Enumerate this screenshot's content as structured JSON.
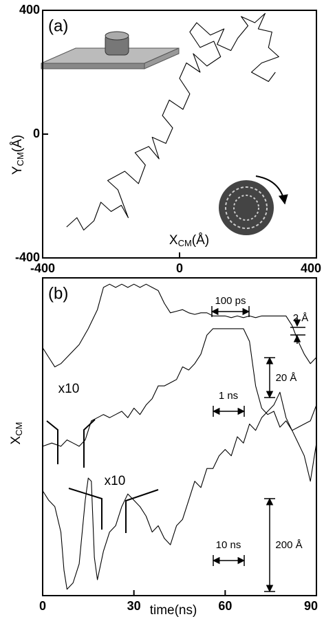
{
  "chart_data": [
    {
      "type": "line",
      "panel_label": "(a)",
      "x_label": {
        "text": "X",
        "sub": "CM",
        "unit": "(Å)"
      },
      "y_label": {
        "text": "Y",
        "sub": "CM",
        "unit": "(Å)"
      },
      "xlim": [
        -400,
        400
      ],
      "ylim": [
        -400,
        400
      ],
      "xticks": [
        -400,
        0,
        400
      ],
      "yticks": [
        -400,
        0,
        400
      ],
      "series": [
        {
          "color": "#000000",
          "x": [
            -330,
            -300,
            -280,
            -250,
            -230,
            -200,
            -170,
            -150,
            -180,
            -210,
            -160,
            -120,
            -100,
            -130,
            -90,
            -60,
            -80,
            -40,
            -20,
            -50,
            -30,
            10,
            30,
            0,
            20,
            60,
            40,
            80,
            120,
            100,
            60,
            30,
            50,
            90,
            130,
            110,
            150,
            170,
            200,
            180,
            220,
            250,
            230,
            270,
            260,
            290,
            240,
            210,
            260,
            280
          ],
          "values": [
            -300,
            -270,
            -310,
            -280,
            -220,
            -250,
            -230,
            -270,
            -180,
            -150,
            -120,
            -160,
            -100,
            -60,
            -40,
            -80,
            -10,
            -30,
            20,
            60,
            110,
            80,
            130,
            180,
            230,
            200,
            260,
            220,
            250,
            300,
            280,
            330,
            360,
            320,
            340,
            290,
            270,
            310,
            350,
            380,
            360,
            390,
            340,
            330,
            280,
            250,
            230,
            200,
            170,
            200
          ]
        }
      ]
    },
    {
      "type": "line",
      "panel_label": "(b)",
      "x_label": "time(ns)",
      "y_label": {
        "text": "X",
        "sub": "CM"
      },
      "xlim": [
        0,
        90
      ],
      "ylim": [
        0,
        100
      ],
      "xticks": [
        0,
        30,
        60,
        90
      ],
      "annotations": [
        "100 ps",
        "2 Å",
        "20 Å",
        "1 ns",
        "x10",
        "x10",
        "10 ns",
        "200 Å"
      ],
      "series": [
        {
          "color": "#000000",
          "x": [
            0,
            2,
            4,
            6,
            9,
            12,
            15,
            18,
            20,
            22,
            24,
            26,
            28,
            30,
            32,
            34,
            36,
            38,
            40,
            42,
            44,
            46,
            48,
            50,
            52,
            54,
            56,
            58,
            60,
            62,
            64,
            66,
            68,
            70,
            72,
            74,
            76,
            78,
            80,
            82,
            84,
            86,
            88,
            90
          ],
          "values": [
            78,
            75,
            72,
            73,
            76,
            79,
            84,
            90,
            97,
            98,
            97,
            98,
            97,
            98,
            97,
            98,
            97,
            96,
            92,
            89,
            89.5,
            90,
            89,
            88.5,
            89,
            89,
            88,
            88,
            88,
            87.5,
            88,
            87.5,
            88,
            87.5,
            88,
            88,
            88,
            88,
            88,
            85,
            80,
            76,
            73,
            75
          ]
        },
        {
          "color": "#000000",
          "x": [
            0,
            3,
            6,
            8,
            10,
            12,
            14,
            16,
            18,
            20,
            22,
            24,
            26,
            28,
            30,
            32,
            34,
            36,
            38,
            40,
            42,
            44,
            46,
            48,
            50,
            52,
            54,
            56,
            58,
            60,
            62,
            64,
            66,
            68,
            70,
            72,
            74,
            76,
            78,
            80,
            82,
            84,
            86,
            88,
            90
          ],
          "values": [
            47,
            48,
            47,
            49,
            48,
            47,
            49,
            55,
            56,
            57,
            56,
            57,
            58,
            56,
            59,
            57,
            60,
            62,
            66,
            66,
            67,
            68,
            72,
            71,
            73,
            76,
            82,
            84,
            84,
            84,
            84,
            84,
            84,
            80,
            66,
            59,
            57,
            58,
            53,
            55,
            52,
            53,
            54,
            55,
            60
          ]
        },
        {
          "color": "#000000",
          "x": [
            0,
            2,
            4,
            6,
            7,
            8,
            10,
            12,
            14,
            15,
            16,
            17,
            18,
            20,
            22,
            24,
            26,
            28,
            30,
            32,
            34,
            36,
            38,
            40,
            42,
            44,
            46,
            48,
            50,
            52,
            54,
            56,
            58,
            60,
            62,
            64,
            66,
            68,
            70,
            72,
            74,
            76,
            78,
            80,
            82,
            84,
            86,
            88,
            90
          ],
          "values": [
            33,
            30,
            28,
            20,
            8,
            2,
            4,
            10,
            30,
            37,
            36,
            12,
            5,
            14,
            20,
            22,
            28,
            32,
            30,
            28,
            25,
            20,
            22,
            18,
            16,
            22,
            24,
            30,
            36,
            34,
            40,
            40,
            44,
            46,
            44,
            50,
            48,
            54,
            52,
            56,
            58,
            60,
            64,
            56,
            52,
            48,
            44,
            36,
            48
          ]
        }
      ]
    }
  ]
}
